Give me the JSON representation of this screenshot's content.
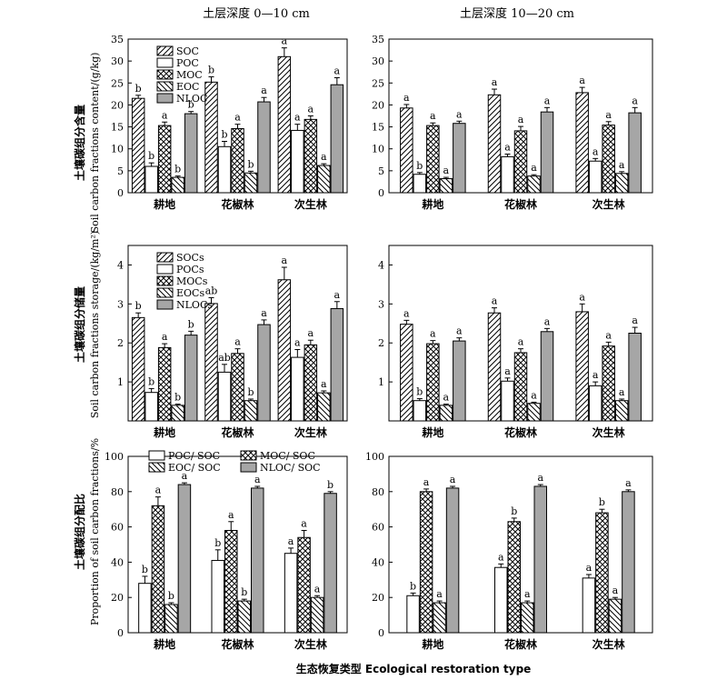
{
  "figure": {
    "col_titles": [
      "土层深度 0—10 cm",
      "土层深度 10—20 cm"
    ],
    "xlabel": "生态恢复类型 Ecological restoration type",
    "row_ylabels": [
      {
        "zh": "土壤碳组分含量",
        "en": "Soil carbon fractions content/(g/kg)"
      },
      {
        "zh": "土壤碳组分储量",
        "en": "Soil carbon fractions storage/(kg/m²)"
      },
      {
        "zh": "土壤碳组分配比",
        "en": "Proportion of soil carbon fractions/%"
      }
    ]
  },
  "styles": {
    "hatch_right": {
      "label": "diagonal hatch /",
      "fill": "#ffffff"
    },
    "open": {
      "label": "open",
      "fill": "#ffffff"
    },
    "crosshatch": {
      "label": "cross hatch",
      "fill": "#ffffff"
    },
    "hatch_left": {
      "label": "diagonal hatch \\",
      "fill": "#ffffff"
    },
    "gray": {
      "label": "solid gray",
      "fill": "#a6a6a6"
    }
  },
  "chart_data": [
    {
      "type": "bar",
      "panel": "content-0-10",
      "categories": [
        "耕地",
        "花椒林",
        "次生林"
      ],
      "ylim": [
        0,
        35
      ],
      "yticks": [
        0,
        5,
        10,
        15,
        20,
        25,
        30,
        35
      ],
      "legend": {
        "cols": 1,
        "placement": "top-left"
      },
      "series": [
        {
          "name": "SOC",
          "style": "hatch_right",
          "values": [
            21.5,
            25.2,
            31.0
          ],
          "errors": [
            0.7,
            1.2,
            2.0
          ],
          "labels": [
            "b",
            "b",
            "a"
          ]
        },
        {
          "name": "POC",
          "style": "open",
          "values": [
            6.0,
            10.5,
            14.2
          ],
          "errors": [
            0.8,
            1.2,
            1.4
          ],
          "labels": [
            "b",
            "b",
            "a"
          ]
        },
        {
          "name": "MOC",
          "style": "crosshatch",
          "values": [
            15.3,
            14.6,
            16.7
          ],
          "errors": [
            0.8,
            1.0,
            0.8
          ],
          "labels": [
            "a",
            "a",
            "a"
          ]
        },
        {
          "name": "EOC",
          "style": "hatch_left",
          "values": [
            3.5,
            4.5,
            6.2
          ],
          "errors": [
            0.3,
            0.4,
            0.4
          ],
          "labels": [
            "b",
            "b",
            "a"
          ]
        },
        {
          "name": "NLOC",
          "style": "gray",
          "values": [
            18.0,
            20.7,
            24.6
          ],
          "errors": [
            0.5,
            1.0,
            1.6
          ],
          "labels": [
            "b",
            "a",
            "a"
          ]
        }
      ]
    },
    {
      "type": "bar",
      "panel": "content-10-20",
      "categories": [
        "耕地",
        "花椒林",
        "次生林"
      ],
      "ylim": [
        0,
        35
      ],
      "yticks": [
        0,
        5,
        10,
        15,
        20,
        25,
        30,
        35
      ],
      "series": [
        {
          "name": "SOC",
          "style": "hatch_right",
          "values": [
            19.3,
            22.3,
            22.8
          ],
          "errors": [
            0.8,
            1.3,
            1.2
          ],
          "labels": [
            "a",
            "a",
            "a"
          ]
        },
        {
          "name": "POC",
          "style": "open",
          "values": [
            4.2,
            8.2,
            7.2
          ],
          "errors": [
            0.4,
            0.6,
            0.6
          ],
          "labels": [
            "b",
            "a",
            "a"
          ]
        },
        {
          "name": "MOC",
          "style": "crosshatch",
          "values": [
            15.3,
            14.1,
            15.4
          ],
          "errors": [
            0.6,
            1.0,
            0.8
          ],
          "labels": [
            "a",
            "a",
            "a"
          ]
        },
        {
          "name": "EOC",
          "style": "hatch_left",
          "values": [
            3.2,
            3.8,
            4.4
          ],
          "errors": [
            0.3,
            0.3,
            0.4
          ],
          "labels": [
            "a",
            "a",
            "a"
          ]
        },
        {
          "name": "NLOC",
          "style": "gray",
          "values": [
            15.8,
            18.4,
            18.2
          ],
          "errors": [
            0.5,
            1.0,
            1.2
          ],
          "labels": [
            "a",
            "a",
            "a"
          ]
        }
      ]
    },
    {
      "type": "bar",
      "panel": "storage-0-10",
      "categories": [
        "耕地",
        "花椒林",
        "次生林"
      ],
      "ylim": [
        0,
        4.5
      ],
      "yticks": [
        1,
        2,
        3,
        4
      ],
      "legend": {
        "cols": 1,
        "placement": "top-left"
      },
      "series": [
        {
          "name": "SOCs",
          "style": "hatch_right",
          "values": [
            2.65,
            3.01,
            3.62
          ],
          "errors": [
            0.12,
            0.15,
            0.32
          ],
          "labels": [
            "b",
            "ab",
            "a"
          ]
        },
        {
          "name": "POCs",
          "style": "open",
          "values": [
            0.73,
            1.25,
            1.63
          ],
          "errors": [
            0.1,
            0.2,
            0.2
          ],
          "labels": [
            "b",
            "ab",
            "a"
          ]
        },
        {
          "name": "MOCs",
          "style": "crosshatch",
          "values": [
            1.88,
            1.73,
            1.95
          ],
          "errors": [
            0.1,
            0.12,
            0.12
          ],
          "labels": [
            "a",
            "a",
            "a"
          ]
        },
        {
          "name": "EOCs",
          "style": "hatch_left",
          "values": [
            0.4,
            0.52,
            0.72
          ],
          "errors": [
            0.03,
            0.04,
            0.05
          ],
          "labels": [
            "b",
            "b",
            "a"
          ]
        },
        {
          "name": "NLOCs",
          "style": "gray",
          "values": [
            2.2,
            2.47,
            2.88
          ],
          "errors": [
            0.1,
            0.12,
            0.18
          ],
          "labels": [
            "b",
            "a",
            "a"
          ]
        }
      ]
    },
    {
      "type": "bar",
      "panel": "storage-10-20",
      "categories": [
        "耕地",
        "花椒林",
        "次生林"
      ],
      "ylim": [
        0,
        4.5
      ],
      "yticks": [
        1,
        2,
        3,
        4
      ],
      "series": [
        {
          "name": "SOCs",
          "style": "hatch_right",
          "values": [
            2.48,
            2.77,
            2.8
          ],
          "errors": [
            0.1,
            0.13,
            0.2
          ],
          "labels": [
            "a",
            "a",
            "a"
          ]
        },
        {
          "name": "POCs",
          "style": "open",
          "values": [
            0.52,
            1.02,
            0.9
          ],
          "errors": [
            0.05,
            0.08,
            0.1
          ],
          "labels": [
            "b",
            "a",
            "a"
          ]
        },
        {
          "name": "MOCs",
          "style": "crosshatch",
          "values": [
            1.98,
            1.75,
            1.92
          ],
          "errors": [
            0.08,
            0.1,
            0.1
          ],
          "labels": [
            "a",
            "a",
            "a"
          ]
        },
        {
          "name": "EOCs",
          "style": "hatch_left",
          "values": [
            0.4,
            0.45,
            0.52
          ],
          "errors": [
            0.03,
            0.03,
            0.04
          ],
          "labels": [
            "a",
            "a",
            "a"
          ]
        },
        {
          "name": "NLOCs",
          "style": "gray",
          "values": [
            2.05,
            2.29,
            2.25
          ],
          "errors": [
            0.08,
            0.08,
            0.15
          ],
          "labels": [
            "a",
            "a",
            "a"
          ]
        }
      ]
    },
    {
      "type": "bar",
      "panel": "proportion-0-10",
      "categories": [
        "耕地",
        "花椒林",
        "次生林"
      ],
      "ylim": [
        0,
        100
      ],
      "yticks": [
        0,
        20,
        40,
        60,
        80,
        100
      ],
      "legend": {
        "cols": 2,
        "placement": "top"
      },
      "series": [
        {
          "name": "POC/ SOC",
          "style": "open",
          "values": [
            28,
            41,
            45
          ],
          "errors": [
            4,
            6,
            3
          ],
          "labels": [
            "b",
            "b",
            "a"
          ]
        },
        {
          "name": "MOC/ SOC",
          "style": "crosshatch",
          "values": [
            72,
            58,
            54
          ],
          "errors": [
            5,
            5,
            4
          ],
          "labels": [
            "a",
            "a",
            "a"
          ]
        },
        {
          "name": "EOC/ SOC",
          "style": "hatch_left",
          "values": [
            16,
            18,
            20
          ],
          "errors": [
            1,
            1,
            1
          ],
          "labels": [
            "b",
            "b",
            "a"
          ]
        },
        {
          "name": "NLOC/ SOC",
          "style": "gray",
          "values": [
            84,
            82,
            79
          ],
          "errors": [
            1,
            1,
            1
          ],
          "labels": [
            "a",
            "a",
            "b"
          ]
        }
      ]
    },
    {
      "type": "bar",
      "panel": "proportion-10-20",
      "categories": [
        "耕地",
        "花椒林",
        "次生林"
      ],
      "ylim": [
        0,
        100
      ],
      "yticks": [
        0,
        20,
        40,
        60,
        80,
        100
      ],
      "series": [
        {
          "name": "POC/ SOC",
          "style": "open",
          "values": [
            21,
            37,
            31
          ],
          "errors": [
            1.5,
            2,
            2
          ],
          "labels": [
            "b",
            "a",
            "a"
          ]
        },
        {
          "name": "MOC/ SOC",
          "style": "crosshatch",
          "values": [
            80,
            63,
            68
          ],
          "errors": [
            1.5,
            2,
            2
          ],
          "labels": [
            "a",
            "b",
            "b"
          ]
        },
        {
          "name": "EOC/ SOC",
          "style": "hatch_left",
          "values": [
            17,
            17,
            19
          ],
          "errors": [
            1,
            1,
            1
          ],
          "labels": [
            "a",
            "a",
            "a"
          ]
        },
        {
          "name": "NLOC/ SOC",
          "style": "gray",
          "values": [
            82,
            83,
            80
          ],
          "errors": [
            1,
            1,
            1
          ],
          "labels": [
            "a",
            "a",
            "a"
          ]
        }
      ]
    }
  ]
}
